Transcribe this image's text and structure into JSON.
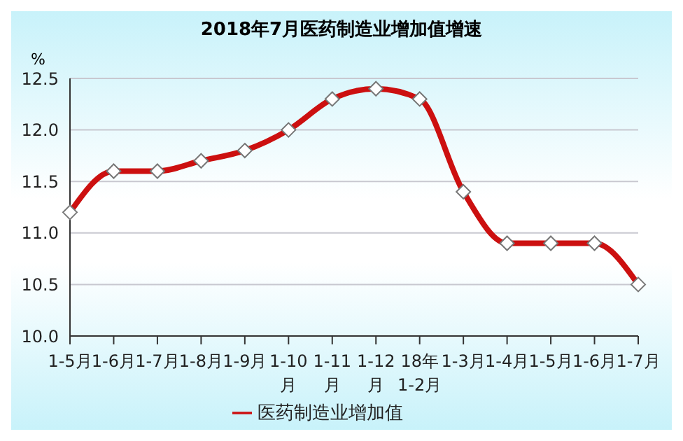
{
  "chart_data": {
    "type": "line",
    "title": "2018年7月医药制造业增加值增速",
    "ylabel": "%",
    "categories": [
      "1-5月",
      "1-6月",
      "1-7月",
      "1-8月",
      "1-9月",
      "1-10月",
      "1-11月",
      "1-12月",
      "18年1-2月",
      "1-3月",
      "1-4月",
      "1-5月",
      "1-6月",
      "1-7月"
    ],
    "series": [
      {
        "name": "医药制造业增加值",
        "color": "#cc1010",
        "values": [
          11.2,
          11.6,
          11.6,
          11.7,
          11.8,
          12.0,
          12.3,
          12.4,
          12.3,
          11.4,
          10.9,
          10.9,
          10.9,
          10.5
        ]
      }
    ],
    "ylim": [
      10,
      12.5
    ],
    "yticks": [
      {
        "value": 10,
        "label": "10.0"
      },
      {
        "value": 10.5,
        "label": "10.5"
      },
      {
        "value": 11,
        "label": "11.0"
      },
      {
        "value": 11.5,
        "label": "11.5"
      },
      {
        "value": 12,
        "label": "12.0"
      },
      {
        "value": 12.5,
        "label": "12.5"
      }
    ],
    "grid": "y",
    "legend": "bottom",
    "marker": "diamond",
    "line_style": "solid"
  }
}
